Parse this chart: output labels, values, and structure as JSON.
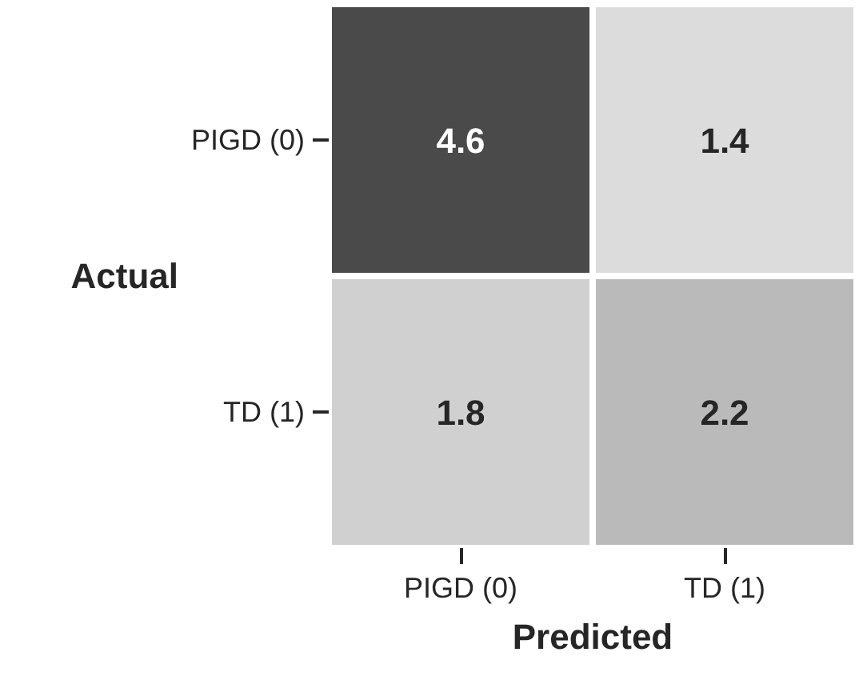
{
  "chart_data": {
    "type": "heatmap",
    "xlabel": "Predicted",
    "ylabel": "Actual",
    "categories": [
      "PIGD (0)",
      "TD (1)"
    ],
    "y_categories": [
      "PIGD (0)",
      "TD (1)"
    ],
    "cells": [
      [
        4.6,
        1.4
      ],
      [
        1.8,
        2.2
      ]
    ],
    "colors": [
      [
        "#4a4a4a",
        "#dcdcdc"
      ],
      [
        "#d0d0d0",
        "#bababa"
      ]
    ],
    "data_labels": true
  }
}
